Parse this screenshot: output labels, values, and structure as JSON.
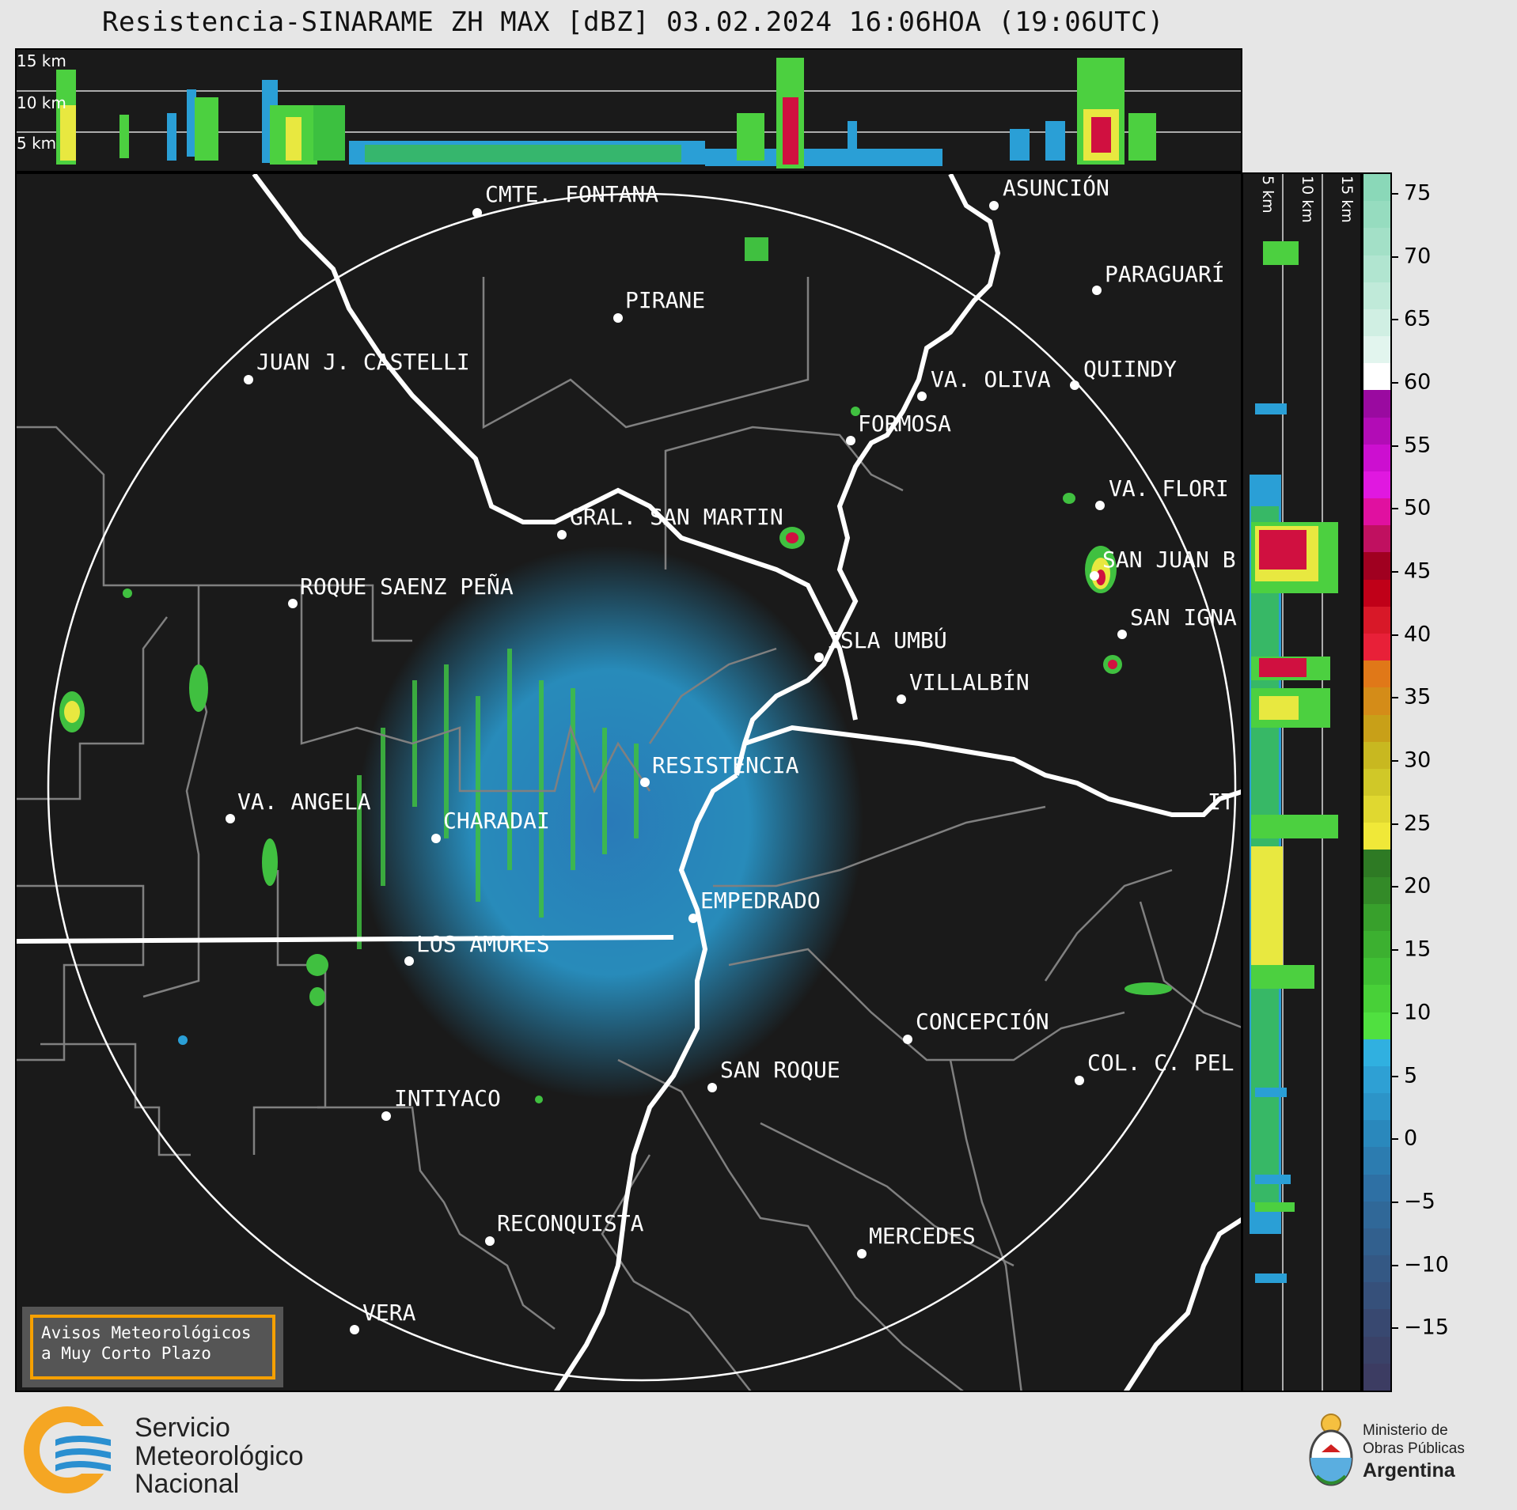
{
  "title": "Resistencia-SINARAME ZH MAX [dBZ] 03.02.2024 16:06HOA (19:06UTC)",
  "top_panel": {
    "height_labels": [
      "15 km",
      "10 km",
      "5 km"
    ]
  },
  "side_panel": {
    "height_labels": [
      "5 km",
      "10 km",
      "15 km"
    ]
  },
  "map": {
    "cities": [
      {
        "name": "CMTE. FONTANA"
      },
      {
        "name": "ASUNCIÓN"
      },
      {
        "name": "PARAGUARÍ"
      },
      {
        "name": "PIRANE"
      },
      {
        "name": "JUAN J. CASTELLI"
      },
      {
        "name": "VA. OLIVA"
      },
      {
        "name": "QUIINDY"
      },
      {
        "name": "FORMOSA"
      },
      {
        "name": "VA. FLORI"
      },
      {
        "name": "GRAL. SAN MARTIN"
      },
      {
        "name": "SAN JUAN B"
      },
      {
        "name": "ROQUE SAENZ PEÑA"
      },
      {
        "name": "SAN IGNA"
      },
      {
        "name": "ISLA UMBÚ"
      },
      {
        "name": "VILLALBÍN"
      },
      {
        "name": "RESISTENCIA"
      },
      {
        "name": "VA. ANGELA"
      },
      {
        "name": "CHARADAI"
      },
      {
        "name": "IT"
      },
      {
        "name": "EMPEDRADO"
      },
      {
        "name": "LOS AMORES"
      },
      {
        "name": "CONCEPCIÓN"
      },
      {
        "name": "SAN ROQUE"
      },
      {
        "name": "COL. C. PEL"
      },
      {
        "name": "INTIYACO"
      },
      {
        "name": "RECONQUISTA"
      },
      {
        "name": "MERCEDES"
      },
      {
        "name": "VERA"
      }
    ]
  },
  "colorbar": {
    "unit": "dBZ",
    "ticks": [
      "75",
      "70",
      "65",
      "60",
      "55",
      "50",
      "45",
      "40",
      "35",
      "30",
      "25",
      "20",
      "15",
      "10",
      "5",
      "0",
      "−5",
      "−10",
      "−15"
    ],
    "min": -20,
    "max": 76.5
  },
  "aviso": {
    "line1": "Avisos Meteorológicos",
    "line2": "a Muy Corto Plazo"
  },
  "footer": {
    "smn_line1": "Servicio",
    "smn_line2": "Meteorológico",
    "smn_line3": "Nacional",
    "ministry_line1": "Ministerio de",
    "ministry_line2": "Obras Públicas",
    "ministry_line3": "Argentina"
  },
  "colors": {
    "background": "#1a1a1a",
    "border_line": "#ffffff",
    "boundary": "#808080",
    "aviso_border": "#f5a000",
    "smn_orange": "#f5a623",
    "smn_blue": "#2a8fd0"
  }
}
